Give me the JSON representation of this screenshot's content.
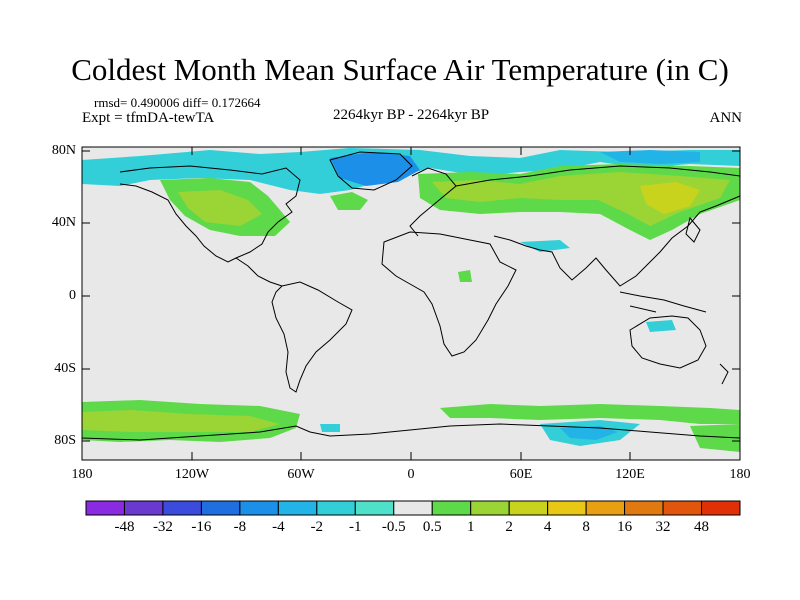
{
  "title": "Coldest Month Mean Surface Air Temperature (in C)",
  "stats_line": "rmsd= 0.490006 diff= 0.172664",
  "experiment": "Expt = tfmDA-tewTA",
  "period": "2264kyr BP - 2264kyr BP",
  "season": "ANN",
  "lat_labels": [
    "80N",
    "40N",
    "0",
    "40S",
    "80S"
  ],
  "lon_labels": [
    "180",
    "120W",
    "60W",
    "0",
    "60E",
    "120E",
    "180"
  ],
  "colorbar": {
    "colors": [
      "#8a2be2",
      "#6a3ad0",
      "#3b4bdc",
      "#1f6fe0",
      "#1c8fe8",
      "#22b4e6",
      "#33cfd8",
      "#4ee0c8",
      "#e8e8e8",
      "#5ed94a",
      "#9bd435",
      "#c8d31e",
      "#e8c814",
      "#e8a012",
      "#e07a10",
      "#e0560c",
      "#e03008"
    ],
    "labels": [
      "-48",
      "-32",
      "-16",
      "-8",
      "-4",
      "-2",
      "-1",
      "-0.5",
      "0.5",
      "1",
      "2",
      "4",
      "8",
      "16",
      "32",
      "48"
    ]
  },
  "legend_colors": {
    "neutral": "#e8e8e8",
    "warm_light": "#5ed94a",
    "warm_mid": "#9bd435",
    "cool_light": "#33cfd8",
    "cool_mid": "#1c8fe8"
  }
}
